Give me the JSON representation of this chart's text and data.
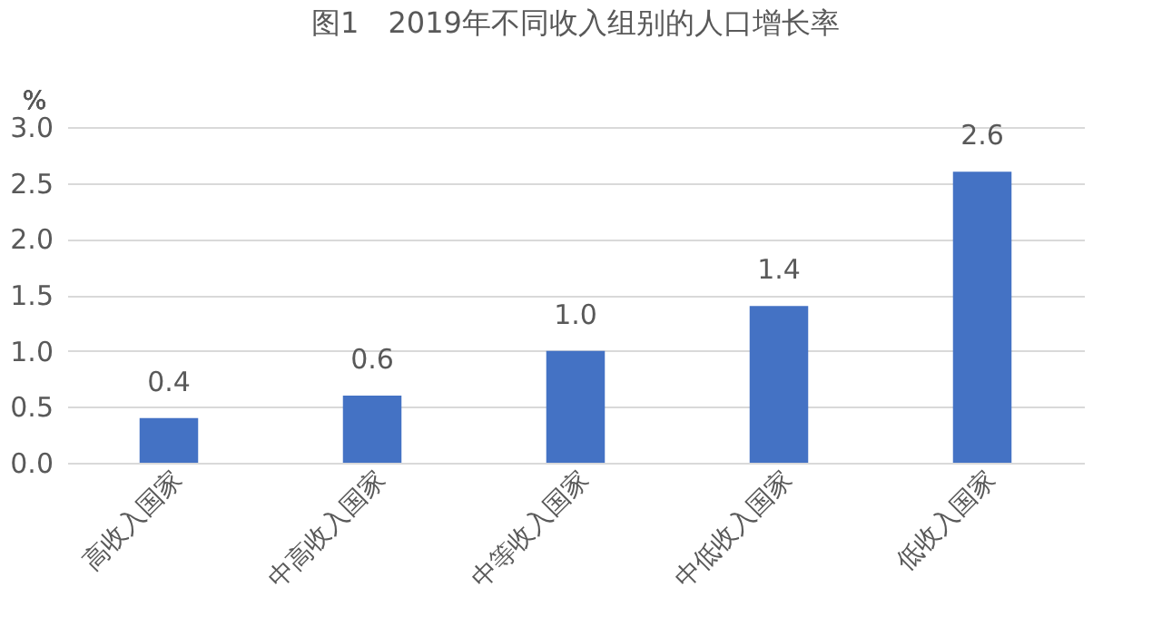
{
  "chart_data": {
    "type": "bar",
    "title": "图1　2019年不同收入组别的人口增长率",
    "ylabel": "%",
    "categories": [
      "高收入国家",
      "中高收入国家",
      "中等收入国家",
      "中低收入国家",
      "低收入国家"
    ],
    "values": [
      0.4,
      0.6,
      1.0,
      1.4,
      2.6
    ],
    "color": "#4472c4",
    "value_labels": [
      "0.4",
      "0.6",
      "1.0",
      "1.4",
      "2.6"
    ],
    "ylim": [
      0,
      3
    ],
    "yticks": [
      {
        "value": 0,
        "label": "0.0"
      },
      0.5,
      {
        "value": 1,
        "label": "1.0"
      },
      1.5,
      {
        "value": 2,
        "label": "2.0"
      },
      2.5,
      {
        "value": 3,
        "label": "3.0"
      }
    ],
    "grid": "y"
  }
}
